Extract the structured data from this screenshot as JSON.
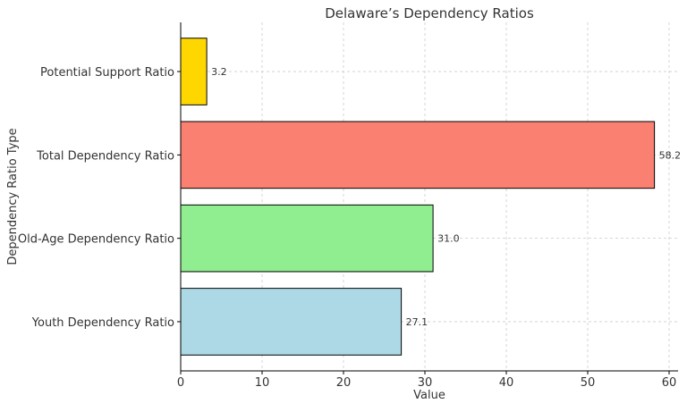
{
  "chart_data": {
    "type": "bar",
    "orientation": "horizontal",
    "title": "Delaware’s Dependency Ratios",
    "xlabel": "Value",
    "ylabel": "Dependency Ratio Type",
    "categories": [
      "Youth Dependency Ratio",
      "Old-Age Dependency Ratio",
      "Total Dependency Ratio",
      "Potential Support Ratio"
    ],
    "values": [
      27.1,
      31.0,
      58.2,
      3.2
    ],
    "data_labels": [
      "27.1",
      "31.0",
      "58.2",
      "3.2"
    ],
    "colors": [
      "#ADD8E6",
      "#90EE90",
      "#FA8072",
      "#FFD700"
    ],
    "xlim": [
      0,
      61.1
    ],
    "xticks": [
      0,
      10,
      20,
      30,
      40,
      50,
      60
    ],
    "grid": true,
    "legend": "none"
  }
}
